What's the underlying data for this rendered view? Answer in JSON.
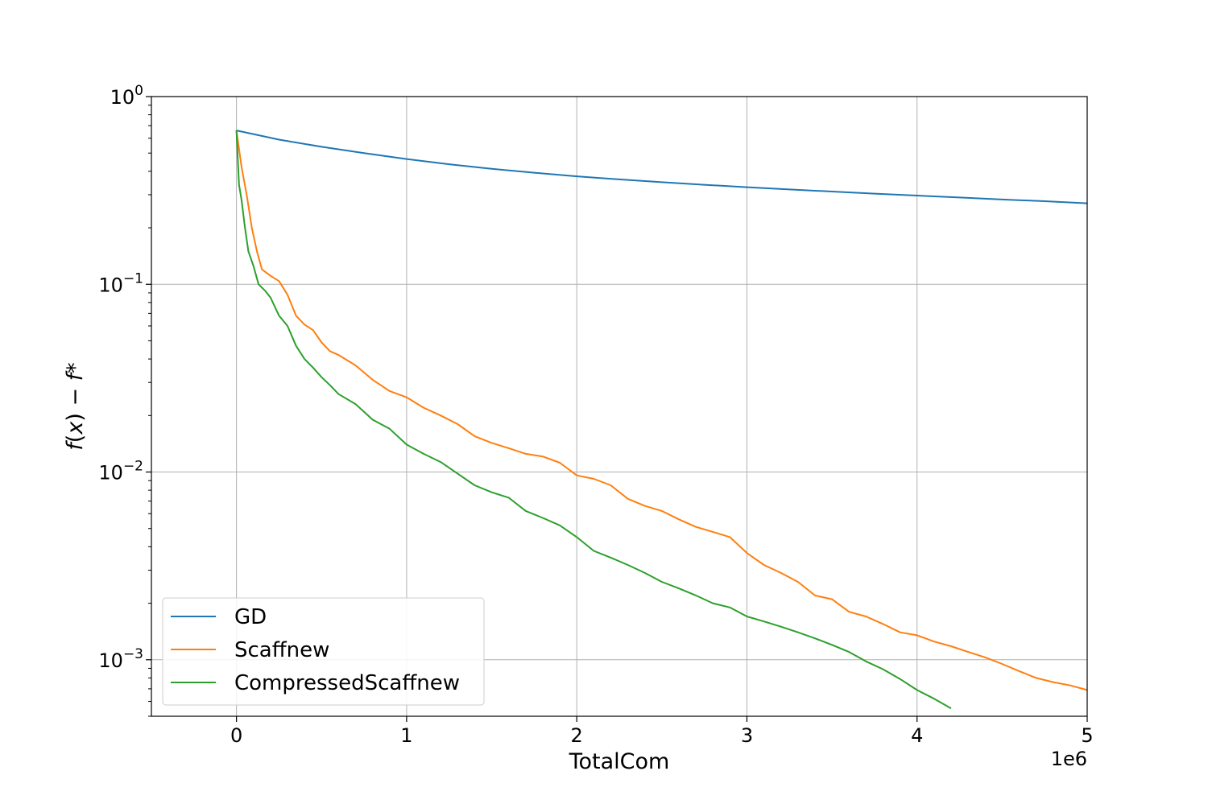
{
  "chart_data": {
    "type": "line",
    "title": "",
    "xlabel": "TotalCom",
    "ylabel": "f(x) − f*",
    "x_offset_label": "1e6",
    "x_scale": "linear",
    "y_scale": "log",
    "xlim": [
      -500000,
      5000000
    ],
    "ylim": [
      0.0005,
      1
    ],
    "grid": true,
    "legend_position": "lower-left",
    "x_ticks": [
      0,
      1000000,
      2000000,
      3000000,
      4000000,
      5000000
    ],
    "x_tick_labels": [
      "0",
      "1",
      "2",
      "3",
      "4",
      "5"
    ],
    "y_ticks": [
      {
        "value": 1,
        "base": "10",
        "exp": "0"
      },
      {
        "value": 0.1,
        "base": "10",
        "exp": "−1"
      },
      {
        "value": 0.01,
        "base": "10",
        "exp": "−2"
      },
      {
        "value": 0.001,
        "base": "10",
        "exp": "−3"
      }
    ],
    "series": [
      {
        "name": "GD",
        "color": "#1f77b4",
        "x": [
          0,
          250000,
          500000,
          750000,
          1000000,
          1250000,
          1500000,
          1750000,
          2000000,
          2250000,
          2500000,
          2750000,
          3000000,
          3250000,
          3500000,
          3750000,
          4000000,
          4250000,
          4500000,
          4750000,
          5000000
        ],
        "y": [
          0.66,
          0.59,
          0.54,
          0.5,
          0.465,
          0.436,
          0.412,
          0.393,
          0.376,
          0.362,
          0.35,
          0.339,
          0.329,
          0.32,
          0.312,
          0.304,
          0.297,
          0.29,
          0.283,
          0.277,
          0.27
        ]
      },
      {
        "name": "Scaffnew",
        "color": "#ff7f0e",
        "x": [
          0,
          30000,
          60000,
          90000,
          120000,
          150000,
          200000,
          250000,
          300000,
          350000,
          400000,
          450000,
          500000,
          550000,
          600000,
          700000,
          800000,
          900000,
          1000000,
          1100000,
          1200000,
          1300000,
          1400000,
          1500000,
          1600000,
          1700000,
          1800000,
          1900000,
          2000000,
          2100000,
          2200000,
          2300000,
          2400000,
          2500000,
          2600000,
          2700000,
          2800000,
          2900000,
          3000000,
          3100000,
          3200000,
          3300000,
          3400000,
          3500000,
          3600000,
          3700000,
          3800000,
          3900000,
          4000000,
          4100000,
          4200000,
          4300000,
          4400000,
          4500000,
          4600000,
          4700000,
          4800000,
          4900000,
          5000000
        ],
        "y": [
          0.66,
          0.42,
          0.3,
          0.2,
          0.15,
          0.12,
          0.111,
          0.104,
          0.088,
          0.068,
          0.061,
          0.057,
          0.049,
          0.044,
          0.042,
          0.037,
          0.031,
          0.027,
          0.025,
          0.022,
          0.02,
          0.018,
          0.0155,
          0.0143,
          0.0134,
          0.0125,
          0.0121,
          0.0112,
          0.0096,
          0.0092,
          0.0085,
          0.0072,
          0.0066,
          0.0062,
          0.0056,
          0.0051,
          0.0048,
          0.0045,
          0.0037,
          0.0032,
          0.0029,
          0.0026,
          0.0022,
          0.0021,
          0.0018,
          0.0017,
          0.00155,
          0.0014,
          0.00135,
          0.00125,
          0.00118,
          0.0011,
          0.00103,
          0.00095,
          0.00087,
          0.0008,
          0.00076,
          0.00073,
          0.00069
        ]
      },
      {
        "name": "CompressedScaffnew",
        "color": "#2ca02c",
        "x": [
          0,
          15000,
          30000,
          50000,
          70000,
          100000,
          130000,
          170000,
          200000,
          250000,
          300000,
          350000,
          400000,
          450000,
          500000,
          550000,
          600000,
          700000,
          800000,
          900000,
          1000000,
          1100000,
          1200000,
          1300000,
          1400000,
          1500000,
          1600000,
          1700000,
          1800000,
          1900000,
          2000000,
          2100000,
          2200000,
          2300000,
          2400000,
          2500000,
          2600000,
          2700000,
          2800000,
          2900000,
          3000000,
          3100000,
          3200000,
          3300000,
          3400000,
          3500000,
          3600000,
          3700000,
          3800000,
          3900000,
          4000000,
          4100000,
          4200000
        ],
        "y": [
          0.66,
          0.34,
          0.28,
          0.2,
          0.15,
          0.125,
          0.1,
          0.092,
          0.085,
          0.068,
          0.06,
          0.047,
          0.04,
          0.036,
          0.032,
          0.029,
          0.026,
          0.023,
          0.019,
          0.017,
          0.014,
          0.0125,
          0.0113,
          0.0098,
          0.0085,
          0.0078,
          0.0073,
          0.0062,
          0.0057,
          0.0052,
          0.0045,
          0.0038,
          0.0035,
          0.0032,
          0.0029,
          0.0026,
          0.0024,
          0.0022,
          0.002,
          0.0019,
          0.0017,
          0.0016,
          0.0015,
          0.0014,
          0.0013,
          0.0012,
          0.0011,
          0.00098,
          0.00089,
          0.00079,
          0.00069,
          0.00062,
          0.00055
        ]
      }
    ]
  }
}
